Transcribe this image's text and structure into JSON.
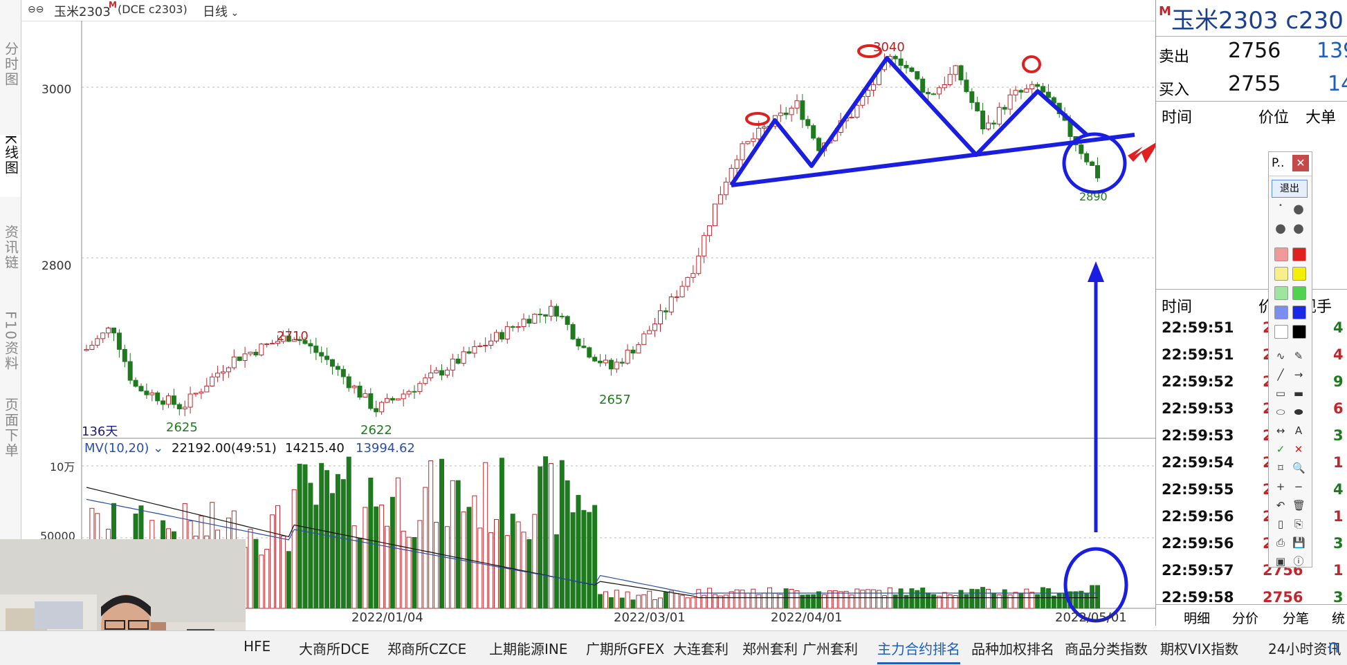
{
  "header": {
    "symbol_title": "玉米2303",
    "marker": "M",
    "exchange_code": "(DCE c2303)",
    "period": "日线",
    "period_icon": "chevron-down-icon"
  },
  "sidebar": {
    "tabs": [
      {
        "label": "分时图",
        "active": false
      },
      {
        "label": "K线图",
        "active": true
      },
      {
        "label": "资讯链",
        "active": false
      },
      {
        "label": "F10资料",
        "active": false
      },
      {
        "label": "页面下单",
        "active": false
      }
    ]
  },
  "price_axis": {
    "labels": [
      "3000",
      "2800"
    ]
  },
  "annotations": {
    "highs": [
      "3040",
      "2710"
    ],
    "lows": [
      "2625",
      "2622",
      "2657",
      "2890"
    ],
    "days_count": "136天"
  },
  "volume_panel": {
    "indicator": "MV(10,20)",
    "value1": "22192.00(49:51)",
    "value2": "14215.40",
    "value3": "13994.62",
    "axis_labels": [
      "10万",
      "50000"
    ]
  },
  "date_axis": {
    "labels": [
      "2022/01/04",
      "2022/03/01",
      "2022/04/01",
      "2022/05/01"
    ]
  },
  "chart_data": {
    "type": "candlestick",
    "title": "玉米2303 日线",
    "price_range": [
      2600,
      3060
    ],
    "price_gridlines": [
      2800,
      3000
    ],
    "annotated_highs": [
      3040,
      2710
    ],
    "annotated_lows": [
      2625,
      2622,
      2657,
      2890
    ],
    "volume_range": [
      0,
      100000
    ],
    "volume_labels": [
      "10万",
      "50000"
    ],
    "ma_series": [
      {
        "name": "MV10",
        "value": 14215.4,
        "color": "#111111"
      },
      {
        "name": "MV20",
        "value": 13994.62,
        "color": "#2b4fa7"
      }
    ],
    "x_labels": [
      "2022/01/04",
      "2022/03/01",
      "2022/04/01",
      "2022/05/01"
    ]
  },
  "quote": {
    "symbol": "玉米2303",
    "code": "c230",
    "sell_label": "卖出",
    "sell_price": "2756",
    "sell_qty": "139",
    "buy_label": "买入",
    "buy_price": "2755",
    "buy_qty": "14",
    "col_time": "时间",
    "col_price": "价位",
    "col_big": "大单"
  },
  "ticks": {
    "col_time": "时间",
    "col_price": "价",
    "col_hand": "现手",
    "rows": [
      {
        "time": "22:59:51",
        "price": "27",
        "hand": "4"
      },
      {
        "time": "22:59:51",
        "price": "27",
        "hand": "4"
      },
      {
        "time": "22:59:52",
        "price": "27",
        "hand": "9"
      },
      {
        "time": "22:59:53",
        "price": "27",
        "hand": "6"
      },
      {
        "time": "22:59:53",
        "price": "27",
        "hand": "3"
      },
      {
        "time": "22:59:54",
        "price": "27",
        "hand": "1"
      },
      {
        "time": "22:59:55",
        "price": "27",
        "hand": "4"
      },
      {
        "time": "22:59:56",
        "price": "27",
        "hand": "1"
      },
      {
        "time": "22:59:56",
        "price": "27",
        "hand": "3"
      },
      {
        "time": "22:59:57",
        "price": "2756",
        "hand": "1"
      },
      {
        "time": "22:59:58",
        "price": "2756",
        "hand": "3"
      }
    ],
    "tabs": [
      "明细",
      "分价",
      "分笔",
      "统"
    ]
  },
  "palette": {
    "title": "P..",
    "exit_label": "退出",
    "close_icon": "close-icon",
    "tool_A": "A"
  },
  "bottom_tabs": [
    {
      "label": "HFE",
      "active": false
    },
    {
      "label": "大商所DCE",
      "active": false
    },
    {
      "label": "郑商所CZCE",
      "active": false
    },
    {
      "label": "上期能源INE",
      "active": false
    },
    {
      "label": "广期所GFEX",
      "active": false
    },
    {
      "label": "大连套利",
      "active": false
    },
    {
      "label": "郑州套利",
      "active": false
    },
    {
      "label": "广州套利",
      "active": false
    },
    {
      "label": "主力合约排名",
      "active": true
    },
    {
      "label": "品种加权排名",
      "active": false
    },
    {
      "label": "商品分类指数",
      "active": false
    },
    {
      "label": "期权VIX指数",
      "active": false
    },
    {
      "label": "24小时资讯",
      "active": false
    }
  ],
  "colors": {
    "up": "#c0272d",
    "down": "#1f7a1f",
    "drawing": "#1a1ee0",
    "accent": "#1b5fbf"
  }
}
